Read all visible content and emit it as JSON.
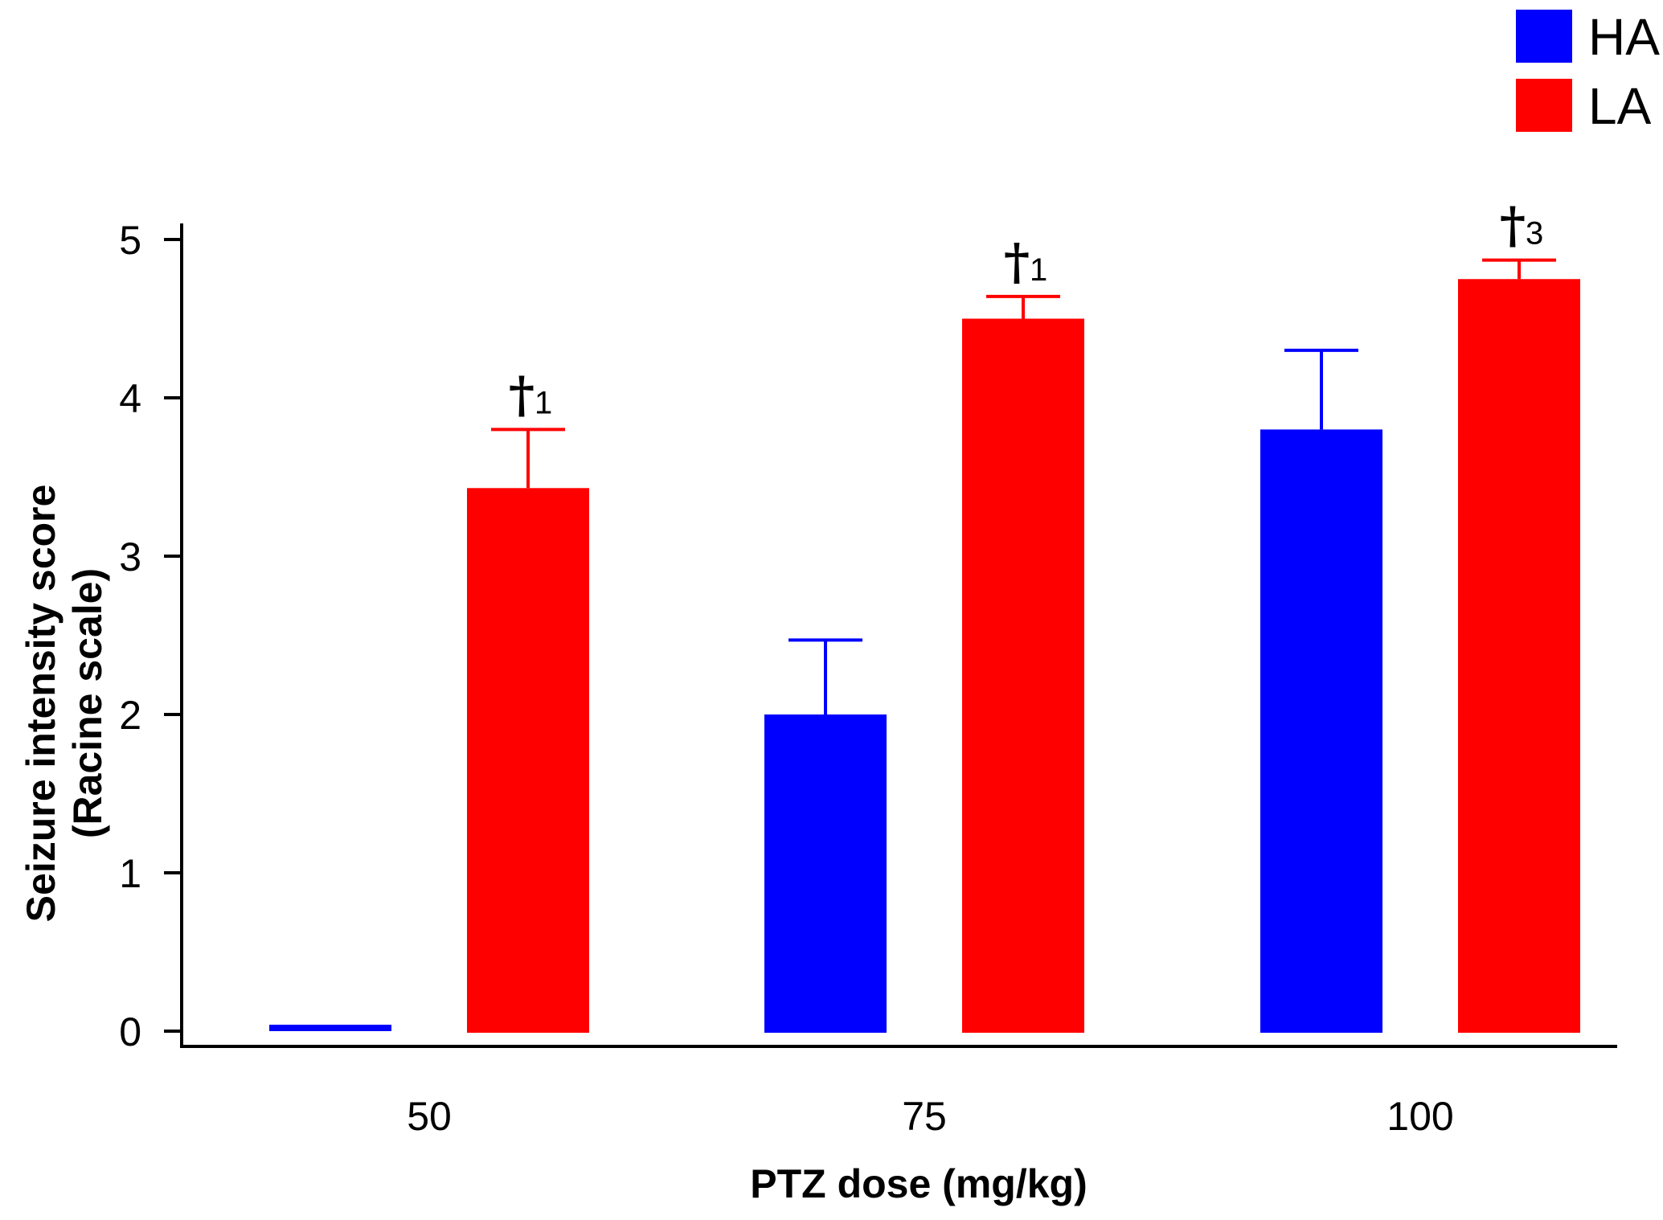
{
  "chart_data": {
    "type": "bar",
    "title": "",
    "xlabel": "PTZ dose (mg/kg)",
    "ylabel": "Seizure intensity score",
    "ylabel_line2": "(Racine scale)",
    "categories": [
      "50",
      "75",
      "100"
    ],
    "ylim": [
      0,
      5
    ],
    "yticks": [
      0,
      1,
      2,
      3,
      4,
      5
    ],
    "grid": false,
    "legend_position": "top-right",
    "series": [
      {
        "name": "HA",
        "color": "#0000FF",
        "values": [
          0,
          2.0,
          3.8
        ],
        "errors": [
          0,
          0.47,
          0.5
        ]
      },
      {
        "name": "LA",
        "color": "#FF0000",
        "values": [
          3.43,
          4.5,
          4.75
        ],
        "errors": [
          0.37,
          0.14,
          0.12
        ]
      }
    ],
    "annotations": [
      {
        "category": "50",
        "series": "LA",
        "symbol": "†",
        "subscript": "1"
      },
      {
        "category": "75",
        "series": "LA",
        "symbol": "†",
        "subscript": "1"
      },
      {
        "category": "100",
        "series": "LA",
        "symbol": "†",
        "subscript": "3"
      }
    ]
  }
}
